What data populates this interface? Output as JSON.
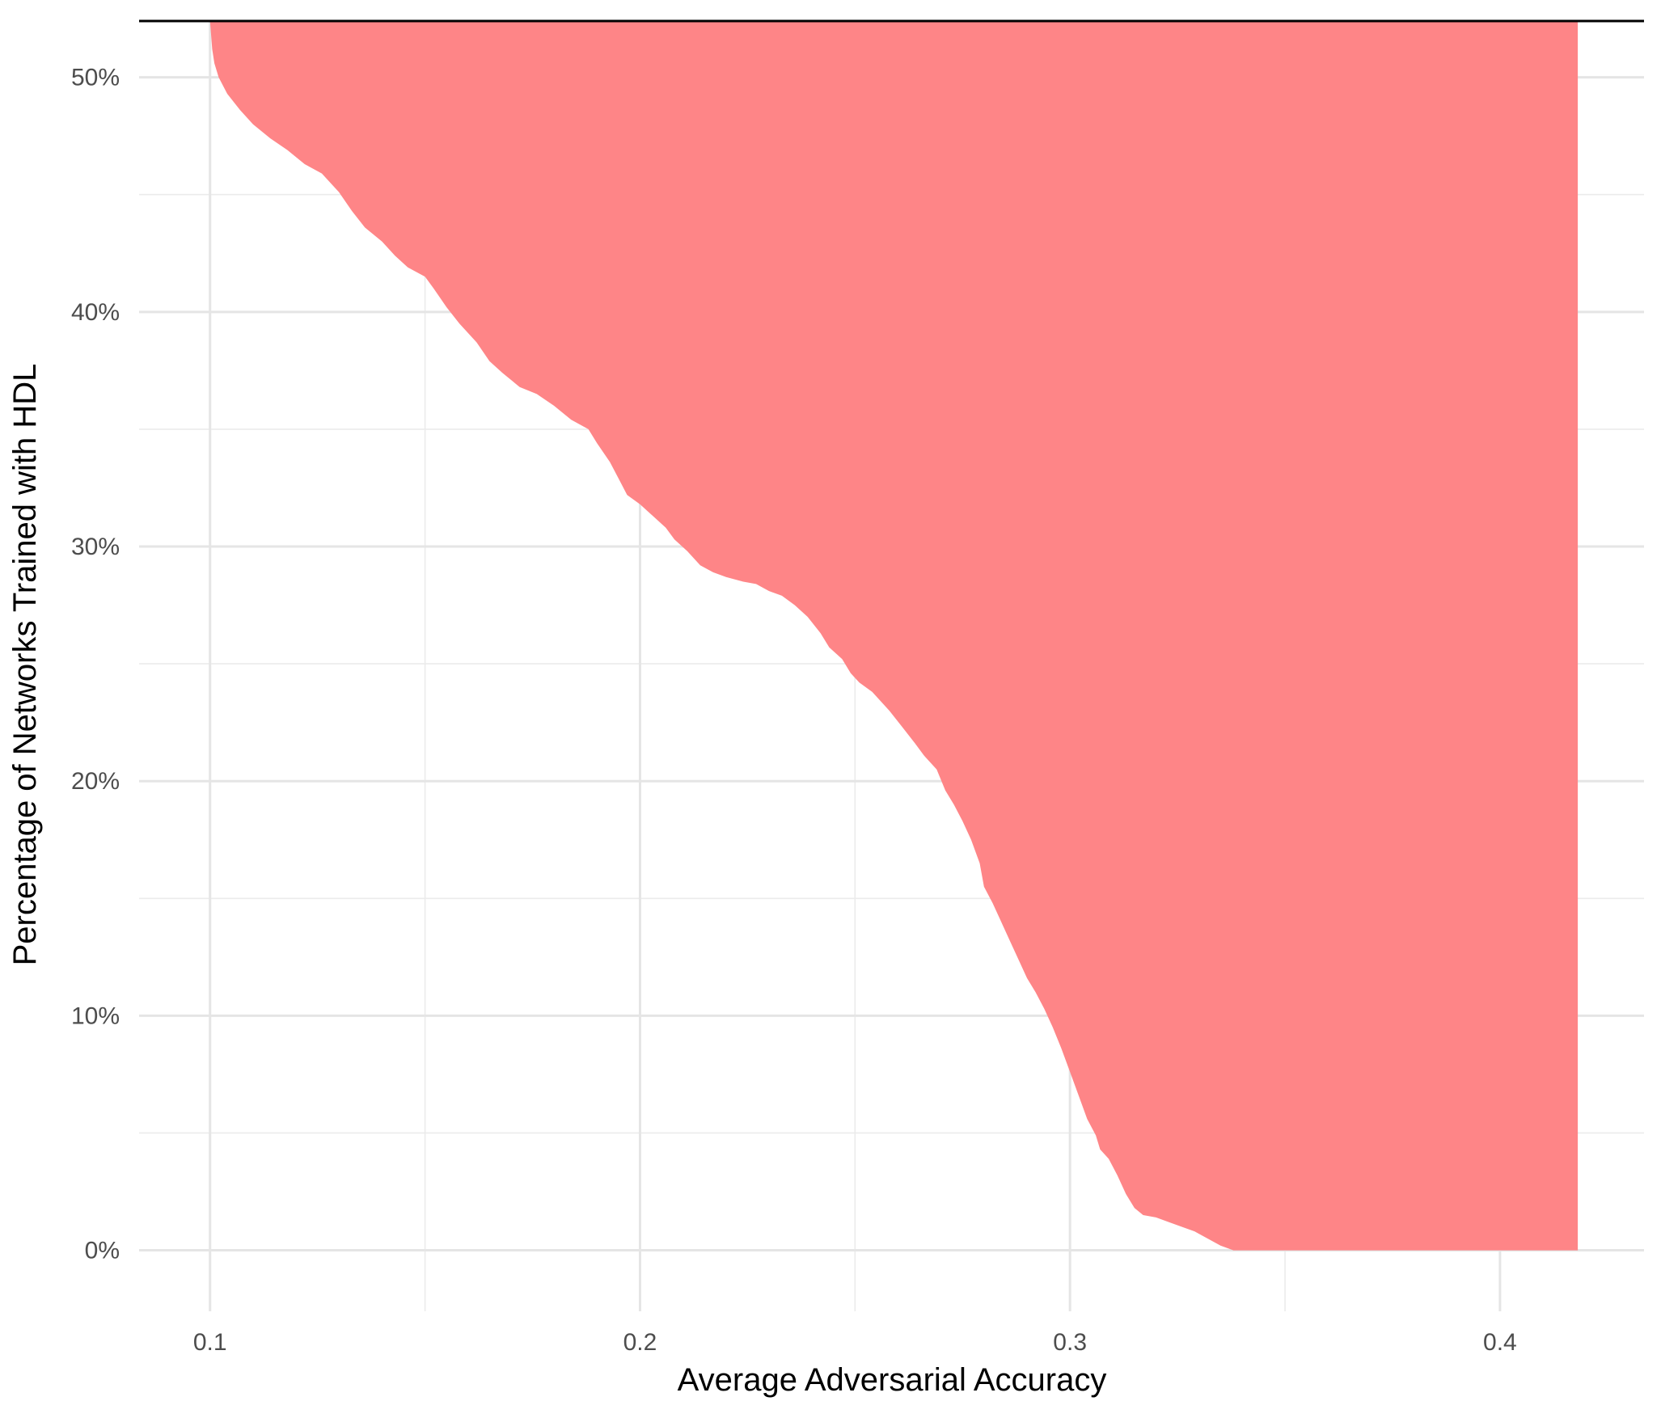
{
  "chart_data": {
    "type": "area",
    "xlabel": "Average Adversarial Accuracy",
    "ylabel": "Percentage of Networks Trained with HDL",
    "xlim": [
      0.0835,
      0.4335
    ],
    "ylim": [
      -2.6,
      52.4
    ],
    "x_ticks": [
      0.1,
      0.2,
      0.3,
      0.4
    ],
    "x_tick_labels": [
      "0.1",
      "0.2",
      "0.3",
      "0.4"
    ],
    "x_minor_ticks": [
      0.15,
      0.25,
      0.35
    ],
    "y_ticks": [
      0,
      10,
      20,
      30,
      40,
      50
    ],
    "y_tick_labels": [
      "0%",
      "10%",
      "20%",
      "30%",
      "40%",
      "50%"
    ],
    "y_minor_ticks": [
      5,
      15,
      25,
      35,
      45
    ],
    "grid": true,
    "legend": "none",
    "reference_line_y": 52.4,
    "fill_color": "#fe8587",
    "series": [
      {
        "points": [
          [
            0.1,
            52.4
          ],
          [
            0.1005,
            51.2
          ],
          [
            0.101,
            50.6
          ],
          [
            0.102,
            50.0
          ],
          [
            0.104,
            49.3
          ],
          [
            0.107,
            48.6
          ],
          [
            0.11,
            48.0
          ],
          [
            0.114,
            47.4
          ],
          [
            0.118,
            46.9
          ],
          [
            0.122,
            46.3
          ],
          [
            0.126,
            45.9
          ],
          [
            0.13,
            45.1
          ],
          [
            0.133,
            44.3
          ],
          [
            0.136,
            43.6
          ],
          [
            0.14,
            43.0
          ],
          [
            0.143,
            42.4
          ],
          [
            0.146,
            41.9
          ],
          [
            0.15,
            41.5
          ],
          [
            0.152,
            41.0
          ],
          [
            0.155,
            40.2
          ],
          [
            0.158,
            39.5
          ],
          [
            0.162,
            38.7
          ],
          [
            0.165,
            37.9
          ],
          [
            0.168,
            37.4
          ],
          [
            0.172,
            36.8
          ],
          [
            0.176,
            36.5
          ],
          [
            0.18,
            36.0
          ],
          [
            0.184,
            35.4
          ],
          [
            0.188,
            35.0
          ],
          [
            0.19,
            34.4
          ],
          [
            0.193,
            33.6
          ],
          [
            0.195,
            32.9
          ],
          [
            0.197,
            32.2
          ],
          [
            0.2,
            31.8
          ],
          [
            0.203,
            31.3
          ],
          [
            0.206,
            30.8
          ],
          [
            0.208,
            30.3
          ],
          [
            0.211,
            29.8
          ],
          [
            0.214,
            29.2
          ],
          [
            0.217,
            28.9
          ],
          [
            0.22,
            28.7
          ],
          [
            0.224,
            28.5
          ],
          [
            0.227,
            28.4
          ],
          [
            0.23,
            28.1
          ],
          [
            0.233,
            27.9
          ],
          [
            0.236,
            27.5
          ],
          [
            0.239,
            27.0
          ],
          [
            0.242,
            26.3
          ],
          [
            0.244,
            25.7
          ],
          [
            0.247,
            25.2
          ],
          [
            0.249,
            24.6
          ],
          [
            0.251,
            24.2
          ],
          [
            0.254,
            23.8
          ],
          [
            0.256,
            23.4
          ],
          [
            0.258,
            23.0
          ],
          [
            0.261,
            22.3
          ],
          [
            0.264,
            21.6
          ],
          [
            0.266,
            21.1
          ],
          [
            0.269,
            20.5
          ],
          [
            0.271,
            19.6
          ],
          [
            0.273,
            19.0
          ],
          [
            0.275,
            18.3
          ],
          [
            0.277,
            17.5
          ],
          [
            0.279,
            16.5
          ],
          [
            0.28,
            15.5
          ],
          [
            0.282,
            14.8
          ],
          [
            0.284,
            14.0
          ],
          [
            0.286,
            13.2
          ],
          [
            0.288,
            12.4
          ],
          [
            0.29,
            11.6
          ],
          [
            0.292,
            11.0
          ],
          [
            0.294,
            10.3
          ],
          [
            0.296,
            9.5
          ],
          [
            0.298,
            8.6
          ],
          [
            0.3,
            7.6
          ],
          [
            0.302,
            6.6
          ],
          [
            0.304,
            5.6
          ],
          [
            0.306,
            4.9
          ],
          [
            0.307,
            4.3
          ],
          [
            0.309,
            3.9
          ],
          [
            0.311,
            3.2
          ],
          [
            0.313,
            2.4
          ],
          [
            0.315,
            1.8
          ],
          [
            0.317,
            1.5
          ],
          [
            0.32,
            1.4
          ],
          [
            0.323,
            1.2
          ],
          [
            0.326,
            1.0
          ],
          [
            0.329,
            0.8
          ],
          [
            0.332,
            0.5
          ],
          [
            0.335,
            0.2
          ],
          [
            0.338,
            0.0
          ],
          [
            0.4181,
            0.0
          ],
          [
            0.4181,
            52.4
          ]
        ]
      }
    ]
  }
}
